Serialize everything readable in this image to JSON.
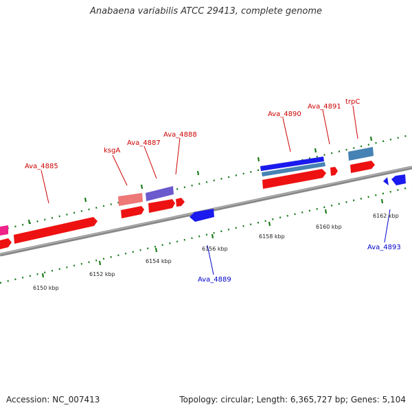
{
  "title": "Anabaena variabilis ATCC 29413, complete genome",
  "footer": {
    "accession": "Accession: NC_007413",
    "summary": "Topology: circular; Length: 6,365,727 bp; Genes: 5,104"
  },
  "colors": {
    "forward_gene": "#ee1111",
    "reverse_gene": "#1a1aee",
    "backbone": "#888888",
    "tick": "#1a7a1a",
    "forward_label": "#cc0000",
    "reverse_label": "#0000cc"
  },
  "scale_labels": [
    "6150 kbp",
    "6152 kbp",
    "6154 kbp",
    "6156 kbp",
    "6158 kbp",
    "6160 kbp",
    "6162 kbp"
  ],
  "gene_labels": [
    {
      "text": "Ava_4885",
      "strand": "forward"
    },
    {
      "text": "ksgA",
      "strand": "forward"
    },
    {
      "text": "Ava_4887",
      "strand": "forward"
    },
    {
      "text": "Ava_4888",
      "strand": "forward"
    },
    {
      "text": "Ava_4890",
      "strand": "forward"
    },
    {
      "text": "Ava_4891",
      "strand": "forward"
    },
    {
      "text": "trpC",
      "strand": "forward"
    },
    {
      "text": "Ava_4889",
      "strand": "reverse"
    },
    {
      "text": "Ava_4893",
      "strand": "reverse"
    }
  ]
}
